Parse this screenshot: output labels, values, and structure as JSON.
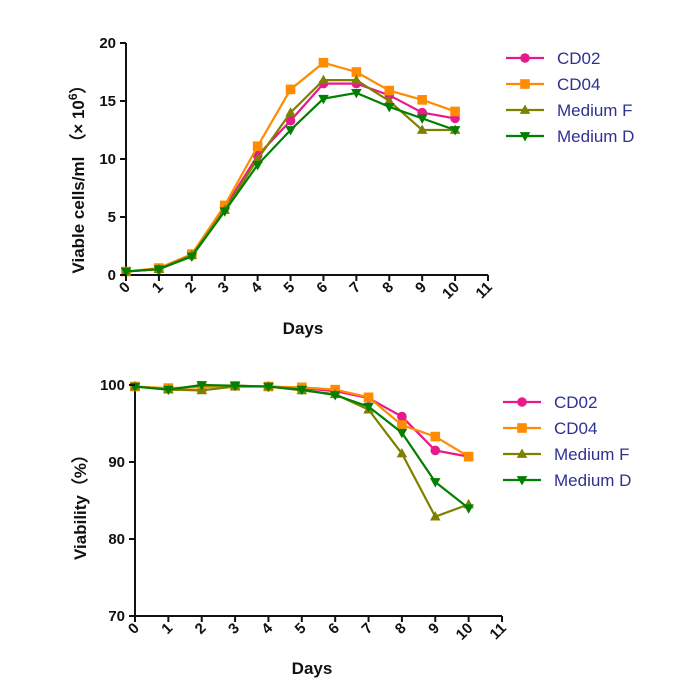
{
  "chart_data": [
    {
      "type": "line",
      "ylabel": "Viable cells/ml",
      "ylabel_units": "（× 10",
      "ylabel_exp": "6",
      "ylabel_close": "）",
      "xlabel": "Days",
      "xlim": [
        0,
        11
      ],
      "ylim": [
        0,
        20
      ],
      "xticks": [
        "0",
        "1",
        "2",
        "3",
        "4",
        "5",
        "6",
        "7",
        "8",
        "9",
        "10",
        "11"
      ],
      "yticks": [
        "0",
        "5",
        "10",
        "15",
        "20"
      ],
      "x": [
        0,
        1,
        2,
        3,
        4,
        5,
        6,
        7,
        8,
        9,
        10
      ],
      "grid": false,
      "legend_position": "right",
      "series": [
        {
          "name": "CD02",
          "color": "#e8198b",
          "marker": "circle",
          "values": [
            0.3,
            0.5,
            1.7,
            5.8,
            10.3,
            13.3,
            16.5,
            16.5,
            15.5,
            14.0,
            13.5
          ]
        },
        {
          "name": "CD04",
          "color": "#ff8c00",
          "marker": "square",
          "values": [
            0.3,
            0.6,
            1.8,
            6.0,
            11.1,
            16.0,
            18.3,
            17.5,
            15.9,
            15.1,
            14.1
          ]
        },
        {
          "name": "Medium F",
          "color": "#808000",
          "marker": "triangle-up",
          "values": [
            0.3,
            0.5,
            1.7,
            5.6,
            10.0,
            14.0,
            16.8,
            16.8,
            15.0,
            12.5,
            12.5
          ]
        },
        {
          "name": "Medium D",
          "color": "#008000",
          "marker": "triangle-down",
          "values": [
            0.3,
            0.5,
            1.6,
            5.5,
            9.5,
            12.5,
            15.2,
            15.7,
            14.5,
            13.5,
            12.5
          ]
        }
      ]
    },
    {
      "type": "line",
      "ylabel": "Viability（%）",
      "xlabel": "Days",
      "xlim": [
        0,
        11
      ],
      "ylim": [
        70,
        100
      ],
      "xticks": [
        "0",
        "1",
        "2",
        "3",
        "4",
        "5",
        "6",
        "7",
        "8",
        "9",
        "10",
        "11"
      ],
      "yticks": [
        "70",
        "80",
        "90",
        "100"
      ],
      "x": [
        0,
        1,
        2,
        3,
        4,
        5,
        6,
        7,
        8,
        9,
        10
      ],
      "grid": false,
      "legend_position": "right",
      "series": [
        {
          "name": "CD02",
          "color": "#e8198b",
          "marker": "circle",
          "values": [
            99.8,
            99.5,
            99.8,
            99.9,
            99.8,
            99.6,
            99.2,
            98.3,
            95.9,
            91.5,
            90.7
          ]
        },
        {
          "name": "CD04",
          "color": "#ff8c00",
          "marker": "square",
          "values": [
            99.8,
            99.6,
            99.7,
            99.9,
            99.8,
            99.7,
            99.4,
            98.4,
            94.8,
            93.3,
            90.7
          ]
        },
        {
          "name": "Medium F",
          "color": "#808000",
          "marker": "triangle-up",
          "values": [
            99.8,
            99.4,
            99.3,
            99.8,
            99.8,
            99.3,
            98.8,
            96.8,
            91.1,
            82.9,
            84.5
          ]
        },
        {
          "name": "Medium D",
          "color": "#008000",
          "marker": "triangle-down",
          "values": [
            99.8,
            99.4,
            100.0,
            99.9,
            99.8,
            99.4,
            98.7,
            97.2,
            93.8,
            87.4,
            84.0
          ]
        }
      ]
    }
  ]
}
